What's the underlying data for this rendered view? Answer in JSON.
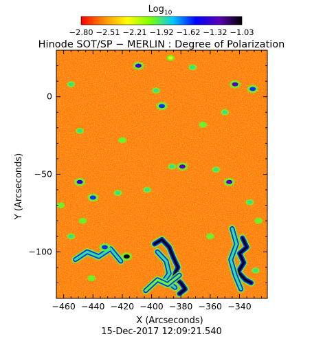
{
  "chart_data": {
    "type": "heatmap",
    "title": "Hinode SOT/SP − MERLIN : Degree of Polarization",
    "colorbar": {
      "label_base": "Log",
      "label_sub": "10",
      "ticks": [
        "−2.80",
        "−2.51",
        "−2.21",
        "−1.92",
        "−1.62",
        "−1.32",
        "−1.03"
      ],
      "range": [
        -2.8,
        -1.03
      ],
      "colors": [
        "#ff0000",
        "#ff8c00",
        "#ffff00",
        "#7cff00",
        "#00c8ff",
        "#0000ff",
        "#5a00b4",
        "#000000"
      ]
    },
    "xlabel": "X (Arcseconds)",
    "ylabel": "Y (Arcseconds)",
    "xlim": [
      -465,
      -321
    ],
    "ylim": [
      -130,
      30
    ],
    "x_ticks": [
      {
        "value": -460,
        "label": "−460"
      },
      {
        "value": -440,
        "label": "−440"
      },
      {
        "value": -420,
        "label": "−420"
      },
      {
        "value": -400,
        "label": "−400"
      },
      {
        "value": -380,
        "label": "−380"
      },
      {
        "value": -360,
        "label": "−360"
      },
      {
        "value": -340,
        "label": "−340"
      }
    ],
    "y_ticks": [
      {
        "value": 0,
        "label": "0"
      },
      {
        "value": -50,
        "label": "−50"
      },
      {
        "value": -100,
        "label": "−100"
      }
    ],
    "background_color": "#ff7f1a",
    "grid": false,
    "features": [
      {
        "kind": "blob",
        "x": -417,
        "y": -103,
        "level": -1.05
      },
      {
        "kind": "blob",
        "x": -432,
        "y": -97,
        "level": -1.6
      },
      {
        "kind": "blob",
        "x": -449,
        "y": -55,
        "level": -1.4
      },
      {
        "kind": "blob",
        "x": -440,
        "y": -65,
        "level": -1.6
      },
      {
        "kind": "blob",
        "x": -423,
        "y": -62,
        "level": -1.9
      },
      {
        "kind": "blob",
        "x": -403,
        "y": -60,
        "level": -1.9
      },
      {
        "kind": "blob",
        "x": -379,
        "y": -45,
        "level": -1.3
      },
      {
        "kind": "blob",
        "x": -386,
        "y": -45,
        "level": -1.9
      },
      {
        "kind": "blob",
        "x": -356,
        "y": -47,
        "level": -1.9
      },
      {
        "kind": "blob",
        "x": -347,
        "y": -55,
        "level": -1.3
      },
      {
        "kind": "blob",
        "x": -333,
        "y": -68,
        "level": -1.9
      },
      {
        "kind": "blob",
        "x": -343,
        "y": 8,
        "level": -1.3
      },
      {
        "kind": "blob",
        "x": -331,
        "y": 5,
        "level": -1.6
      },
      {
        "kind": "blob",
        "x": -350,
        "y": -10,
        "level": -1.9
      },
      {
        "kind": "blob",
        "x": -409,
        "y": 20,
        "level": -1.4
      },
      {
        "kind": "blob",
        "x": -397,
        "y": 4,
        "level": -1.9
      },
      {
        "kind": "blob",
        "x": -393,
        "y": -6,
        "level": -1.6
      },
      {
        "kind": "blob",
        "x": -455,
        "y": 8,
        "level": -1.9
      },
      {
        "kind": "blob",
        "x": -449,
        "y": -22,
        "level": -1.9
      },
      {
        "kind": "blob",
        "x": -372,
        "y": 19,
        "level": -1.9
      },
      {
        "kind": "blob",
        "x": -387,
        "y": 25,
        "level": -2.2
      },
      {
        "kind": "blob",
        "x": -365,
        "y": -18,
        "level": -2.0
      },
      {
        "kind": "blob",
        "x": -420,
        "y": -28,
        "level": -2.0
      },
      {
        "kind": "blob",
        "x": -462,
        "y": -70,
        "level": -2.0
      },
      {
        "kind": "blob",
        "x": -455,
        "y": -90,
        "level": -1.9
      },
      {
        "kind": "blob",
        "x": -447,
        "y": -80,
        "level": -2.0
      },
      {
        "kind": "blob",
        "x": -441,
        "y": -117,
        "level": -2.0
      },
      {
        "kind": "blob",
        "x": -360,
        "y": -90,
        "level": -2.0
      },
      {
        "kind": "blob",
        "x": -329,
        "y": -112,
        "level": -1.9
      },
      {
        "kind": "blob",
        "x": -327,
        "y": -80,
        "level": -2.0
      },
      {
        "kind": "filament",
        "level": -1.05,
        "points": [
          [
            -398,
            -95
          ],
          [
            -393,
            -92
          ],
          [
            -388,
            -97
          ],
          [
            -385,
            -104
          ],
          [
            -382,
            -110
          ],
          [
            -385,
            -116
          ],
          [
            -380,
            -120
          ],
          [
            -377,
            -124
          ],
          [
            -381,
            -127
          ]
        ]
      },
      {
        "kind": "filament",
        "level": -1.9,
        "points": [
          [
            -396,
            -100
          ],
          [
            -390,
            -106
          ],
          [
            -388,
            -114
          ],
          [
            -391,
            -118
          ],
          [
            -384,
            -123
          ]
        ]
      },
      {
        "kind": "filament",
        "level": -1.05,
        "points": [
          [
            -338,
            -91
          ],
          [
            -335,
            -97
          ],
          [
            -340,
            -101
          ],
          [
            -337,
            -107
          ],
          [
            -341,
            -113
          ],
          [
            -336,
            -118
          ],
          [
            -332,
            -120
          ]
        ]
      },
      {
        "kind": "filament",
        "level": -1.9,
        "points": [
          [
            -345,
            -85
          ],
          [
            -342,
            -95
          ],
          [
            -346,
            -105
          ],
          [
            -343,
            -115
          ],
          [
            -339,
            -124
          ]
        ]
      },
      {
        "kind": "filament",
        "level": -1.9,
        "points": [
          [
            -452,
            -105
          ],
          [
            -444,
            -100
          ],
          [
            -436,
            -103
          ],
          [
            -428,
            -98
          ],
          [
            -421,
            -106
          ]
        ]
      },
      {
        "kind": "filament",
        "level": -2.0,
        "points": [
          [
            -404,
            -125
          ],
          [
            -396,
            -118
          ],
          [
            -389,
            -121
          ],
          [
            -381,
            -115
          ]
        ]
      }
    ]
  },
  "footer": {
    "timestamp": "15-Dec-2017 12:09:21.540"
  }
}
